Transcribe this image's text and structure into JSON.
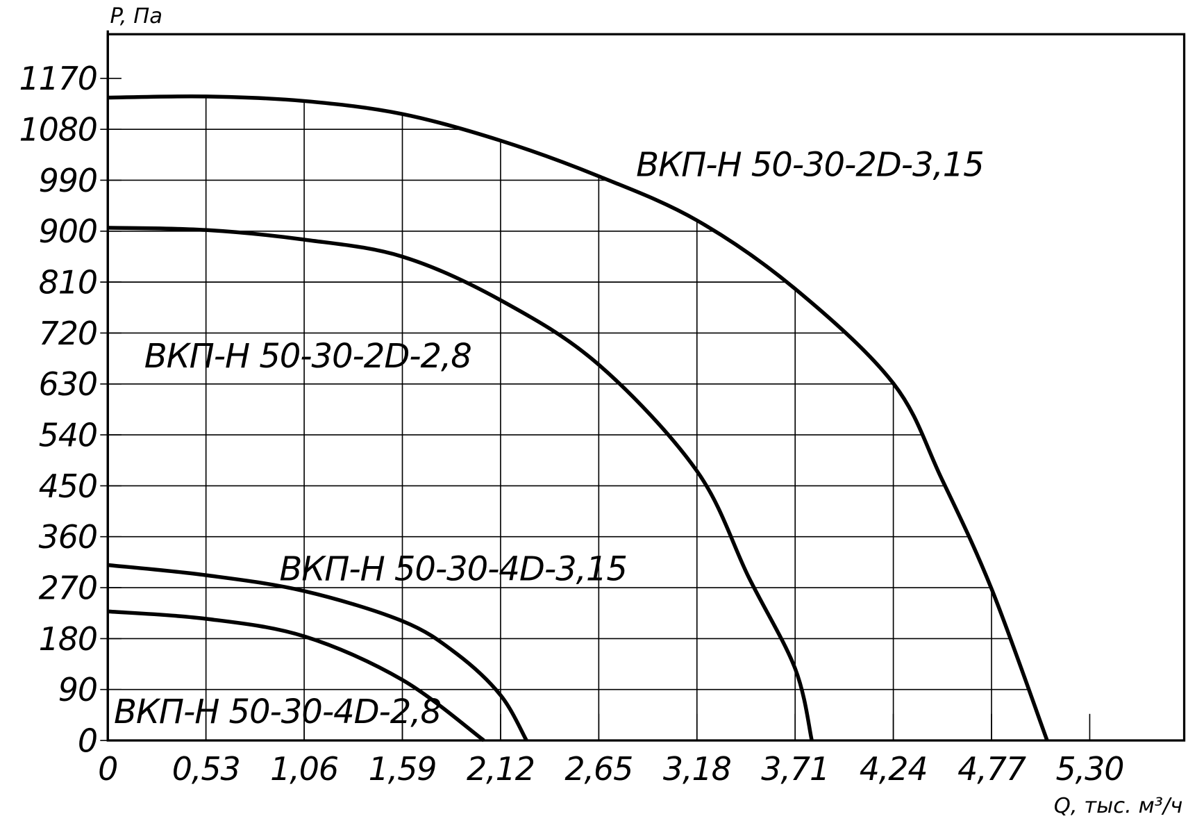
{
  "chart_data": {
    "type": "line",
    "y_label": "P, Па",
    "x_label": "Q, тыс. м³/ч",
    "xlim": [
      0,
      5.81
    ],
    "ylim": [
      0,
      1248
    ],
    "xticks": [
      0,
      {
        "value": 0.53,
        "label": "0,53"
      },
      {
        "value": 1.06,
        "label": "1,06"
      },
      {
        "value": 1.59,
        "label": "1,59"
      },
      {
        "value": 2.12,
        "label": "2,12"
      },
      {
        "value": 2.65,
        "label": "2,65"
      },
      {
        "value": 3.18,
        "label": "3,18"
      },
      {
        "value": 3.71,
        "label": "3,71"
      },
      {
        "value": 4.24,
        "label": "4,24"
      },
      {
        "value": 4.77,
        "label": "4,77"
      },
      {
        "value": 5.3,
        "label": "5,30"
      }
    ],
    "yticks": [
      0,
      90,
      180,
      270,
      360,
      450,
      540,
      630,
      720,
      810,
      900,
      990,
      1080,
      1170
    ],
    "grid": true,
    "series": [
      {
        "name": "ВКП-Н 50-30-2D-3,15",
        "color": "#000000",
        "x": [
          0,
          0.53,
          1.06,
          1.59,
          2.12,
          2.65,
          3.18,
          3.71,
          4.24,
          4.5,
          4.77,
          5.07
        ],
        "values": [
          1136,
          1138,
          1130,
          1107,
          1060,
          997,
          919,
          798,
          631,
          463,
          268,
          0
        ]
      },
      {
        "name": "ВКП-Н 50-30-2D-2,8",
        "color": "#000000",
        "x": [
          0,
          0.53,
          1.06,
          1.59,
          2.12,
          2.65,
          3.18,
          3.46,
          3.71,
          3.8
        ],
        "values": [
          906,
          902,
          885,
          855,
          778,
          664,
          476,
          288,
          127,
          0
        ]
      },
      {
        "name": "ВКП-Н 50-30-4D-3,15",
        "color": "#000000",
        "x": [
          0,
          0.53,
          1.06,
          1.59,
          1.88,
          2.12,
          2.26
        ],
        "values": [
          310,
          292,
          264,
          211,
          154,
          80,
          0
        ]
      },
      {
        "name": "ВКП-Н 50-30-4D-2,8",
        "color": "#000000",
        "x": [
          0,
          0.53,
          1.06,
          1.59,
          2.03
        ],
        "values": [
          228,
          215,
          184,
          107,
          0
        ]
      }
    ]
  }
}
